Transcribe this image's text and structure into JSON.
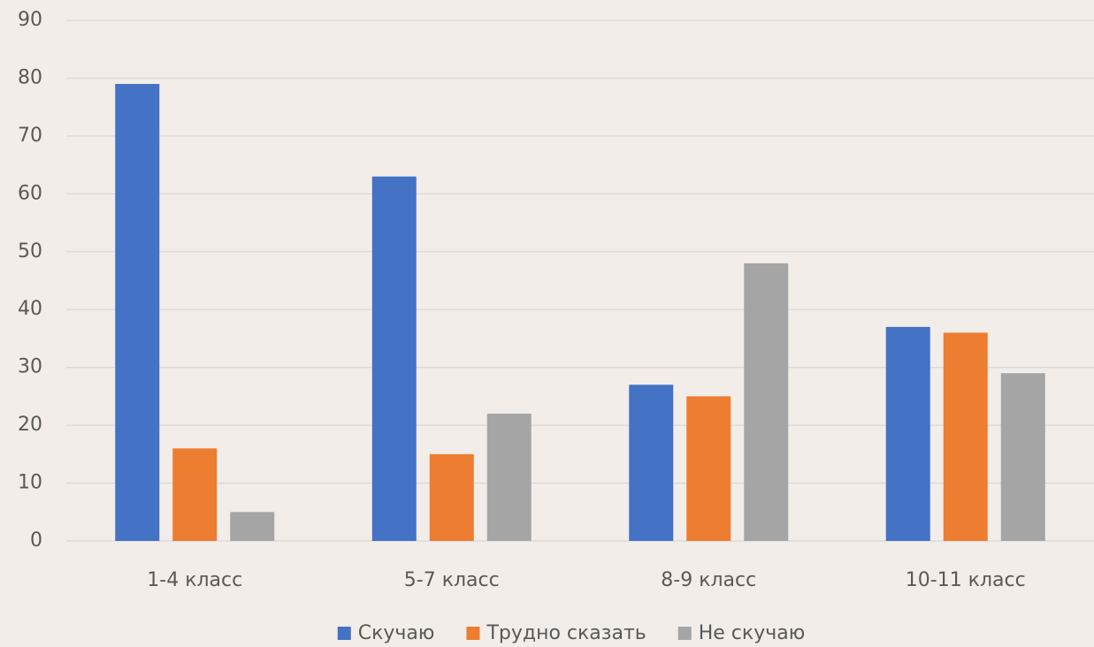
{
  "chart_data": {
    "type": "bar",
    "categories": [
      "1-4 класс",
      "5-7 класс",
      "8-9 класс",
      "10-11 класс"
    ],
    "series": [
      {
        "name": "Скучаю",
        "color": "#4472c4",
        "values": [
          79,
          63,
          27,
          37
        ]
      },
      {
        "name": "Трудно сказать",
        "color": "#ed7d31",
        "values": [
          16,
          15,
          25,
          36
        ]
      },
      {
        "name": "Не скучаю",
        "color": "#a5a5a5",
        "values": [
          5,
          22,
          48,
          29
        ]
      }
    ],
    "ylim": [
      0,
      90
    ],
    "yticks": [
      0,
      10,
      20,
      30,
      40,
      50,
      60,
      70,
      80,
      90
    ],
    "grid": true,
    "legend": "bottom"
  }
}
